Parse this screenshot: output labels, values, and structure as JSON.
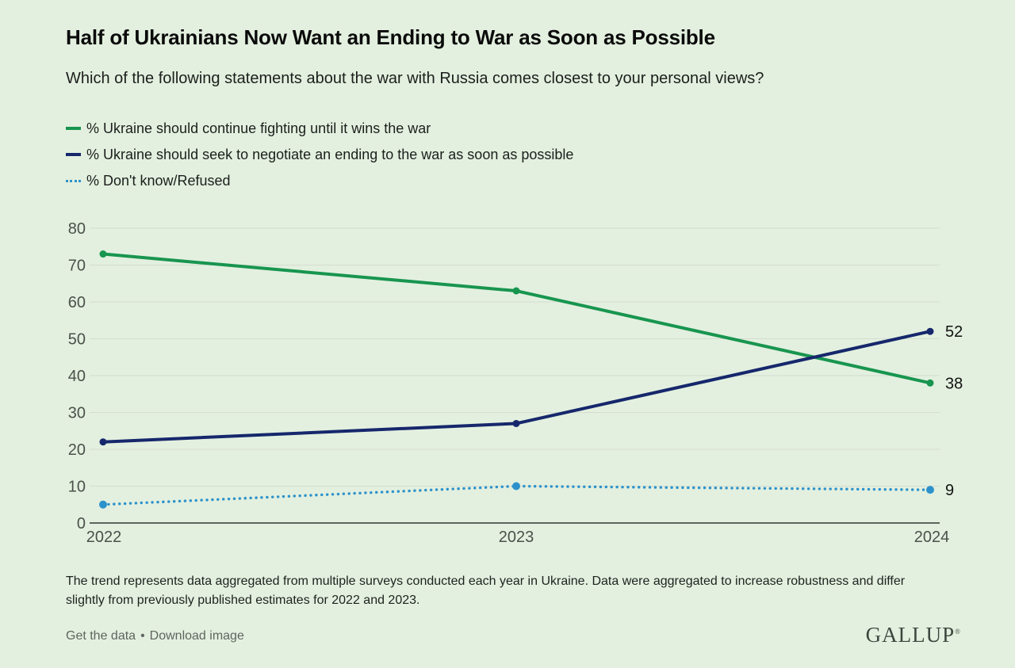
{
  "header": {
    "title": "Half of Ukrainians Now Want an Ending to War as Soon as Possible",
    "subtitle": "Which of the following statements about the war with Russia comes closest to your personal views?"
  },
  "chart_data": {
    "type": "line",
    "x": [
      2022,
      2023,
      2024
    ],
    "xticklabels": [
      "2022",
      "2023",
      "2024"
    ],
    "series": [
      {
        "name": "% Ukraine should continue fighting until it wins the war",
        "values": [
          73,
          63,
          38
        ],
        "color": "#18954f",
        "style": "solid",
        "end_label": "38"
      },
      {
        "name": "% Ukraine should seek to negotiate an ending to the war as soon as possible",
        "values": [
          22,
          27,
          52
        ],
        "color": "#16276c",
        "style": "solid",
        "end_label": "52"
      },
      {
        "name": "% Don't know/Refused",
        "values": [
          5,
          10,
          9
        ],
        "color": "#2d92cb",
        "style": "dotted",
        "end_label": "9"
      }
    ],
    "ylim": [
      0,
      80
    ],
    "yticks": [
      0,
      10,
      20,
      30,
      40,
      50,
      60,
      70,
      80
    ],
    "grid": true,
    "legend_position": "top-left"
  },
  "footnote": "The trend represents data aggregated from multiple surveys conducted each year in Ukraine. Data were aggregated to increase robustness and differ slightly from previously published estimates for 2022 and 2023.",
  "footer": {
    "links": [
      {
        "label": "Get the data"
      },
      {
        "label": "Download image"
      }
    ],
    "separator": "•",
    "brand": "GALLUP",
    "brand_mark": "®"
  },
  "colors": {
    "background": "#e3f0df",
    "grid": "#d5ddd1",
    "axis": "#303430",
    "tick_label": "#4b504b",
    "title_text": "#0b0b0b",
    "body_text": "#1c1f1c",
    "muted_text": "#60655f",
    "brand_text": "#3b463e"
  }
}
